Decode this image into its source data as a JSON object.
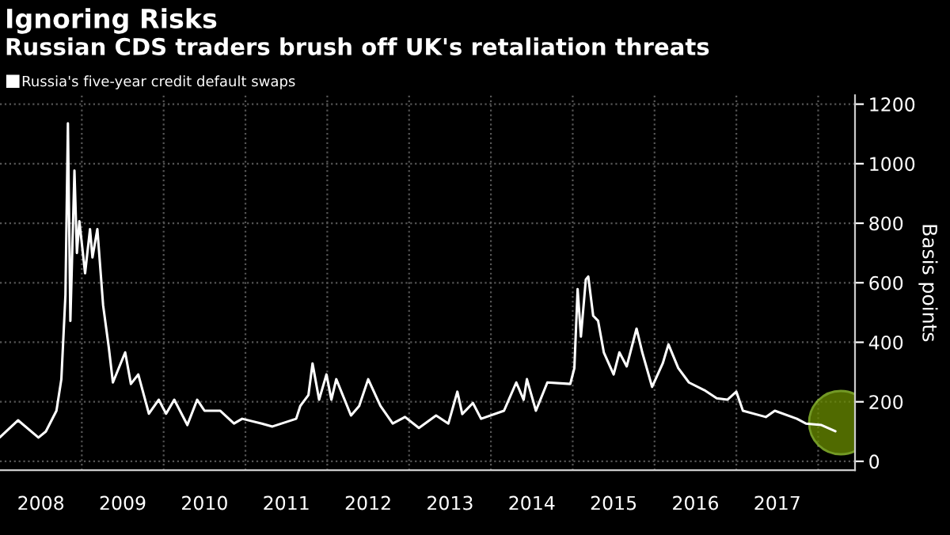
{
  "chart_data": {
    "type": "line",
    "title": "Ignoring Risks",
    "subtitle": "Russian CDS traders brush off UK's retaliation threats",
    "ylabel": "Basis points",
    "x": [
      2008.0,
      2008.22,
      2008.47,
      2008.56,
      2008.69,
      2008.75,
      2008.8,
      2008.83,
      2008.86,
      2008.91,
      2008.94,
      2008.97,
      2009.04,
      2009.1,
      2009.13,
      2009.19,
      2009.26,
      2009.33,
      2009.38,
      2009.53,
      2009.6,
      2009.69,
      2009.82,
      2009.94,
      2010.03,
      2010.13,
      2010.29,
      2010.41,
      2010.5,
      2010.69,
      2010.86,
      2010.96,
      2011.2,
      2011.33,
      2011.62,
      2011.67,
      2011.77,
      2011.82,
      2011.9,
      2011.99,
      2012.05,
      2012.11,
      2012.29,
      2012.39,
      2012.5,
      2012.65,
      2012.8,
      2012.95,
      2013.12,
      2013.33,
      2013.48,
      2013.59,
      2013.65,
      2013.78,
      2013.88,
      2014.16,
      2014.31,
      2014.4,
      2014.44,
      2014.55,
      2014.69,
      2014.97,
      2015.02,
      2015.06,
      2015.1,
      2015.16,
      2015.19,
      2015.25,
      2015.31,
      2015.38,
      2015.5,
      2015.57,
      2015.66,
      2015.78,
      2015.85,
      2015.97,
      2016.1,
      2016.17,
      2016.29,
      2016.42,
      2016.61,
      2016.76,
      2016.89,
      2017.0,
      2017.08,
      2017.36,
      2017.47,
      2017.74,
      2017.85,
      2018.04,
      2018.21
    ],
    "series": [
      {
        "name": "Russia's five-year credit default swaps",
        "color": "#ffffff",
        "values": [
          81,
          138,
          80,
          100,
          170,
          276,
          560,
          1136,
          472,
          977,
          700,
          807,
          632,
          780,
          685,
          780,
          525,
          382,
          265,
          366,
          260,
          292,
          160,
          207,
          160,
          207,
          122,
          207,
          170,
          170,
          127,
          143,
          127,
          117,
          143,
          186,
          223,
          329,
          207,
          292,
          207,
          276,
          154,
          186,
          276,
          186,
          127,
          149,
          112,
          154,
          127,
          234,
          159,
          196,
          143,
          170,
          265,
          207,
          276,
          170,
          265,
          260,
          313,
          579,
          419,
          611,
          621,
          489,
          472,
          366,
          292,
          366,
          319,
          446,
          366,
          250,
          329,
          393,
          313,
          265,
          239,
          212,
          207,
          234,
          170,
          149,
          170,
          143,
          127,
          122,
          101
        ]
      }
    ],
    "xlim": [
      2008,
      2018.45
    ],
    "ylim": [
      -30,
      1230
    ],
    "xticks": [
      {
        "value": 2008.5,
        "label": "2008"
      },
      {
        "value": 2009,
        "label": null
      },
      {
        "value": 2009.5,
        "label": "2009"
      },
      {
        "value": 2010,
        "label": null
      },
      {
        "value": 2010.5,
        "label": "2010"
      },
      {
        "value": 2011,
        "label": null
      },
      {
        "value": 2011.5,
        "label": "2011"
      },
      {
        "value": 2012,
        "label": null
      },
      {
        "value": 2012.5,
        "label": "2012"
      },
      {
        "value": 2013,
        "label": null
      },
      {
        "value": 2013.5,
        "label": "2013"
      },
      {
        "value": 2014,
        "label": null
      },
      {
        "value": 2014.5,
        "label": "2014"
      },
      {
        "value": 2015,
        "label": null
      },
      {
        "value": 2015.5,
        "label": "2015"
      },
      {
        "value": 2016,
        "label": null
      },
      {
        "value": 2016.5,
        "label": "2016"
      },
      {
        "value": 2017,
        "label": null
      },
      {
        "value": 2017.5,
        "label": "2017"
      },
      {
        "value": 2018,
        "label": null
      }
    ],
    "yticks": [
      0,
      200,
      400,
      600,
      800,
      1000,
      1200
    ],
    "grid": true,
    "legend": "top left",
    "marker": "none",
    "line_style": "solid"
  }
}
